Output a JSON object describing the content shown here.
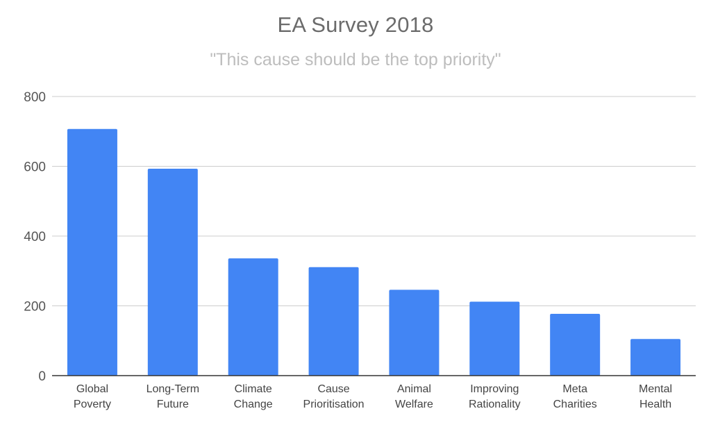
{
  "chart_data": {
    "type": "bar",
    "title": "EA Survey 2018",
    "subtitle": "\"This cause should be the top priority\"",
    "categories": [
      [
        "Global",
        "Poverty"
      ],
      [
        "Long-Term",
        "Future"
      ],
      [
        "Climate",
        "Change"
      ],
      [
        "Cause",
        "Prioritisation"
      ],
      [
        "Animal",
        "Welfare"
      ],
      [
        "Improving",
        "Rationality"
      ],
      [
        "Meta",
        "Charities"
      ],
      [
        "Mental",
        "Health"
      ]
    ],
    "values": [
      707,
      593,
      336,
      311,
      246,
      212,
      177,
      105
    ],
    "ylim": [
      0,
      800
    ],
    "yticks": [
      0,
      200,
      400,
      600,
      800
    ],
    "grid": true,
    "legend": "none",
    "bar_color": "#4285f4",
    "grid_color": "#cccccc",
    "axis_color": "#333333"
  }
}
